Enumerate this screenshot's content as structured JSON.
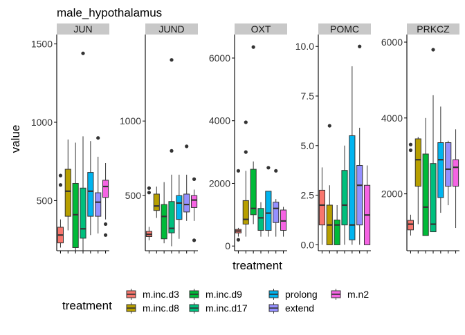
{
  "chart_data": {
    "type": "boxplot",
    "title": "male_hypothalamus",
    "xlabel": "treatment",
    "ylabel": "value",
    "legend": {
      "title": "treatment",
      "position": "bottom",
      "items": [
        {
          "label": "m.inc.d3",
          "color": "#F8766D"
        },
        {
          "label": "m.inc.d8",
          "color": "#B79F00"
        },
        {
          "label": "m.inc.d9",
          "color": "#00BA38"
        },
        {
          "label": "m.inc.d17",
          "color": "#00BF7D"
        },
        {
          "label": "prolong",
          "color": "#00B4EF"
        },
        {
          "label": "extend",
          "color": "#9590FF"
        },
        {
          "label": "m.n2",
          "color": "#F564E3"
        }
      ]
    },
    "categories": [
      "m.inc.d3",
      "m.inc.d8",
      "m.inc.d9",
      "m.inc.d17",
      "prolong",
      "extend",
      "m.n2"
    ],
    "panels": [
      {
        "gene": "JUN",
        "ylim": [
          180,
          1560
        ],
        "yticks": [
          500,
          1000,
          1500
        ],
        "ytick_labels": [
          "500",
          "1000",
          "1500"
        ],
        "boxes": [
          {
            "min": 200,
            "q1": 230,
            "median": 280,
            "q3": 330,
            "max": 380,
            "outliers": [
              600,
              660
            ]
          },
          {
            "min": 310,
            "q1": 400,
            "median": 560,
            "q3": 700,
            "max": 890,
            "outliers": []
          },
          {
            "min": 170,
            "q1": 200,
            "median": 410,
            "q3": 610,
            "max": 870,
            "outliers": []
          },
          {
            "min": 170,
            "q1": 260,
            "median": 320,
            "q3": 580,
            "max": 910,
            "outliers": [
              1440
            ]
          },
          {
            "min": 280,
            "q1": 400,
            "median": 560,
            "q3": 680,
            "max": 880,
            "outliers": []
          },
          {
            "min": 290,
            "q1": 400,
            "median": 490,
            "q3": 550,
            "max": 780,
            "outliers": [
              900
            ]
          },
          {
            "min": 380,
            "q1": 520,
            "median": 590,
            "q3": 630,
            "max": 740,
            "outliers": [
              280,
              350
            ]
          }
        ]
      },
      {
        "gene": "JUND",
        "ylim": [
          130,
          1580
        ],
        "yticks": [
          500,
          1000
        ],
        "ytick_labels": [
          "500",
          "1000"
        ],
        "boxes": [
          {
            "min": 200,
            "q1": 225,
            "median": 240,
            "q3": 260,
            "max": 290,
            "outliers": [
              520,
              550
            ]
          },
          {
            "min": 350,
            "q1": 400,
            "median": 430,
            "q3": 510,
            "max": 560,
            "outliers": []
          },
          {
            "min": 180,
            "q1": 210,
            "median": 360,
            "q3": 440,
            "max": 590,
            "outliers": []
          },
          {
            "min": 160,
            "q1": 250,
            "median": 280,
            "q3": 460,
            "max": 640,
            "outliers": [
              800,
              1410
            ]
          },
          {
            "min": 210,
            "q1": 340,
            "median": 450,
            "q3": 500,
            "max": 640,
            "outliers": []
          },
          {
            "min": 330,
            "q1": 390,
            "median": 440,
            "q3": 510,
            "max": 640,
            "outliers": [
              830
            ]
          },
          {
            "min": 330,
            "q1": 420,
            "median": 470,
            "q3": 500,
            "max": 540,
            "outliers": [
              200,
              610
            ]
          }
        ]
      },
      {
        "gene": "OXT",
        "ylim": [
          -150,
          6750
        ],
        "yticks": [
          0,
          2000,
          4000,
          6000
        ],
        "ytick_labels": [
          "0",
          "2000",
          "4000",
          "6000"
        ],
        "boxes": [
          {
            "min": 300,
            "q1": 420,
            "median": 480,
            "q3": 530,
            "max": 580,
            "outliers": [
              200,
              2400
            ]
          },
          {
            "min": 300,
            "q1": 700,
            "median": 850,
            "q3": 1450,
            "max": 2400,
            "outliers": [
              3000,
              3950
            ]
          },
          {
            "min": 700,
            "q1": 1000,
            "median": 1200,
            "q3": 2450,
            "max": 2700,
            "outliers": [
              6350
            ]
          },
          {
            "min": 300,
            "q1": 500,
            "median": 900,
            "q3": 1200,
            "max": 1400,
            "outliers": []
          },
          {
            "min": 300,
            "q1": 500,
            "median": 1050,
            "q3": 1750,
            "max": 1750,
            "outliers": [
              2500
            ]
          },
          {
            "min": 300,
            "q1": 750,
            "median": 1200,
            "q3": 1400,
            "max": 1500,
            "outliers": [
              2400
            ]
          },
          {
            "min": 300,
            "q1": 500,
            "median": 800,
            "q3": 1150,
            "max": 1250,
            "outliers": []
          }
        ]
      },
      {
        "gene": "POMC",
        "ylim": [
          -0.3,
          10.6
        ],
        "yticks": [
          0.0,
          2.5,
          5.0,
          7.5,
          10.0
        ],
        "ytick_labels": [
          "0.0",
          "2.5",
          "5.0",
          "7.5",
          "10.0"
        ],
        "boxes": [
          {
            "min": 0.0,
            "q1": 1.0,
            "median": 2.0,
            "q3": 2.75,
            "max": 3.9,
            "outliers": []
          },
          {
            "min": 0.0,
            "q1": 0.0,
            "median": 1.0,
            "q3": 2.0,
            "max": 3.0,
            "outliers": [
              6.0
            ]
          },
          {
            "min": 0.0,
            "q1": 0.0,
            "median": 1.0,
            "q3": 1.25,
            "max": 2.0,
            "outliers": []
          },
          {
            "min": 0.0,
            "q1": 1.0,
            "median": 2.0,
            "q3": 3.75,
            "max": 5.0,
            "outliers": []
          },
          {
            "min": 0.0,
            "q1": 0.25,
            "median": 1.0,
            "q3": 5.5,
            "max": 9.0,
            "outliers": []
          },
          {
            "min": 0.0,
            "q1": 1.0,
            "median": 3.0,
            "q3": 4.0,
            "max": 5.9,
            "outliers": [
              10.0
            ]
          },
          {
            "min": 0.0,
            "q1": 0.0,
            "median": 1.5,
            "q3": 3.0,
            "max": 4.0,
            "outliers": []
          }
        ]
      },
      {
        "gene": "PRKCZ",
        "ylim": [
          500,
          6200
        ],
        "yticks": [
          2000,
          4000,
          6000
        ],
        "ytick_labels": [
          "2000",
          "4000",
          "6000"
        ],
        "boxes": [
          {
            "min": 900,
            "q1": 1050,
            "median": 1200,
            "q3": 1300,
            "max": 1450,
            "outliers": [
              3150,
              3300
            ]
          },
          {
            "min": 1200,
            "q1": 2200,
            "median": 2900,
            "q3": 3450,
            "max": 3500,
            "outliers": []
          },
          {
            "min": 900,
            "q1": 900,
            "median": 1650,
            "q3": 3050,
            "max": 4000,
            "outliers": []
          },
          {
            "min": 1000,
            "q1": 1000,
            "median": 1200,
            "q3": 2800,
            "max": 4600,
            "outliers": [
              5800
            ]
          },
          {
            "min": 1500,
            "q1": 1900,
            "median": 2900,
            "q3": 3350,
            "max": 4300,
            "outliers": []
          },
          {
            "min": 1700,
            "q1": 2200,
            "median": 2650,
            "q3": 3350,
            "max": 3400,
            "outliers": []
          },
          {
            "min": 1100,
            "q1": 2200,
            "median": 2700,
            "q3": 2900,
            "max": 3700,
            "outliers": []
          }
        ]
      }
    ]
  }
}
